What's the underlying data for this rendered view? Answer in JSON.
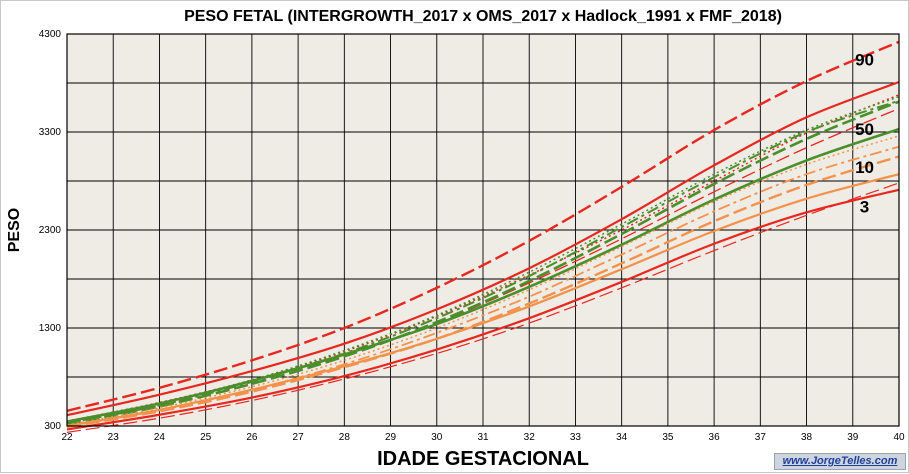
{
  "chart_data": {
    "type": "line",
    "title": "PESO FETAL (INTERGROWTH_2017 x OMS_2017 x Hadlock_1991 x FMF_2018)",
    "xlabel": "IDADE GESTACIONAL",
    "ylabel": "PESO",
    "xlim": [
      22,
      40
    ],
    "ylim": [
      300,
      4300
    ],
    "x_ticks": [
      "22",
      "23",
      "24",
      "25",
      "26",
      "27",
      "28",
      "29",
      "30",
      "31",
      "32",
      "33",
      "34",
      "35",
      "36",
      "37",
      "38",
      "39",
      "40"
    ],
    "y_ticks": [
      "300",
      "1300",
      "2300",
      "3300",
      "4300"
    ],
    "grid": true,
    "background": "#efece6",
    "x": [
      22,
      24,
      26,
      28,
      30,
      32,
      34,
      36,
      38,
      40
    ],
    "series": [
      {
        "color": "#e8271f",
        "dash": "solid",
        "width": 2.2,
        "values": [
          410,
          620,
          860,
          1140,
          1490,
          1910,
          2410,
          2960,
          3450,
          3810
        ]
      },
      {
        "color": "#e8271f",
        "dash": "solid",
        "width": 2.2,
        "values": [
          265,
          415,
          590,
          810,
          1080,
          1400,
          1770,
          2160,
          2480,
          2710
        ]
      },
      {
        "color": "#e8271f",
        "dash": "dashed",
        "width": 2.4,
        "values": [
          455,
          690,
          970,
          1300,
          1710,
          2190,
          2740,
          3320,
          3820,
          4220
        ]
      },
      {
        "color": "#e8271f",
        "dash": "dashed",
        "width": 1.3,
        "values": [
          330,
          510,
          730,
          1010,
          1350,
          1760,
          2210,
          2690,
          3140,
          3540
        ]
      },
      {
        "color": "#e8271f",
        "dash": "dotted",
        "width": 1.5,
        "values": [
          350,
          540,
          770,
          1060,
          1420,
          1840,
          2300,
          2800,
          3290,
          3680
        ]
      },
      {
        "color": "#e8271f",
        "dash": "dashed",
        "width": 1.2,
        "values": [
          235,
          380,
          560,
          780,
          1040,
          1350,
          1710,
          2090,
          2450,
          2780
        ]
      },
      {
        "color": "#4a8f2c",
        "dash": "solid",
        "width": 2.6,
        "values": [
          345,
          530,
          760,
          1030,
          1340,
          1720,
          2150,
          2610,
          3010,
          3330
        ]
      },
      {
        "color": "#4a8f2c",
        "dash": "dashed",
        "width": 2.6,
        "values": [
          320,
          500,
          730,
          1010,
          1360,
          1780,
          2260,
          2770,
          3230,
          3610
        ]
      },
      {
        "color": "#4a8f2c",
        "dash": "dashdot",
        "width": 2.0,
        "values": [
          330,
          510,
          750,
          1040,
          1400,
          1830,
          2330,
          2840,
          3300,
          3620
        ]
      },
      {
        "color": "#4a8f2c",
        "dash": "dotted",
        "width": 1.5,
        "values": [
          340,
          530,
          770,
          1070,
          1430,
          1870,
          2360,
          2870,
          3320,
          3660
        ]
      },
      {
        "color": "#f4914a",
        "dash": "solid",
        "width": 2.2,
        "values": [
          300,
          465,
          670,
          910,
          1190,
          1520,
          1900,
          2290,
          2620,
          2870
        ]
      },
      {
        "color": "#f4914a",
        "dash": "dashed",
        "width": 2.4,
        "values": [
          290,
          450,
          650,
          900,
          1190,
          1550,
          1960,
          2390,
          2760,
          3050
        ]
      },
      {
        "color": "#f4914a",
        "dash": "dashdot",
        "width": 1.8,
        "values": [
          295,
          460,
          670,
          930,
          1250,
          1620,
          2050,
          2490,
          2870,
          3150
        ]
      },
      {
        "color": "#f4914a",
        "dash": "dotted",
        "width": 1.5,
        "values": [
          310,
          485,
          700,
          970,
          1300,
          1690,
          2130,
          2590,
          2970,
          3260
        ]
      }
    ],
    "percentile_labels": [
      {
        "text": "90",
        "x": 39.05,
        "y": 3980
      },
      {
        "text": "50",
        "x": 39.05,
        "y": 3270
      },
      {
        "text": "10",
        "x": 39.05,
        "y": 2880
      },
      {
        "text": "3",
        "x": 39.15,
        "y": 2480
      }
    ]
  },
  "watermark": "www.JorgeTelles.com"
}
